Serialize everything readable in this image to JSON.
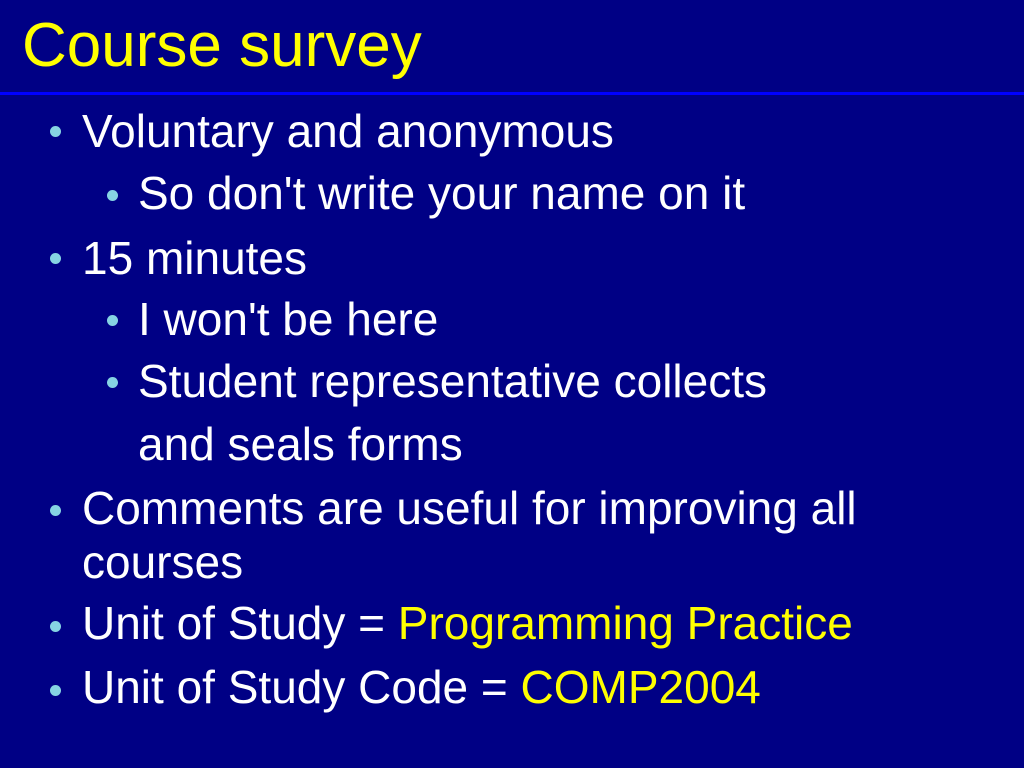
{
  "slide": {
    "title": "Course survey",
    "bullets": [
      {
        "level": 1,
        "text": "Voluntary and anonymous"
      },
      {
        "level": 2,
        "text": "So don't write your name on it"
      },
      {
        "level": 1,
        "text": "15 minutes"
      },
      {
        "level": 2,
        "text": "I won't be here"
      },
      {
        "level": 2,
        "text": "Student representative collects",
        "continuation": "and seals forms"
      },
      {
        "level": 1,
        "text": "Comments are useful for improving all",
        "continuation": "courses"
      },
      {
        "level": 1,
        "text": "Unit of Study = ",
        "highlight": "Programming Practice"
      },
      {
        "level": 1,
        "text": "Unit of Study Code = ",
        "highlight": "COMP2004"
      }
    ]
  },
  "colors": {
    "background": "#000085",
    "title": "#ffff00",
    "rule": "#0000ff",
    "bullet": "#86d3e3",
    "text": "#ffffff",
    "highlight": "#ffff00"
  }
}
